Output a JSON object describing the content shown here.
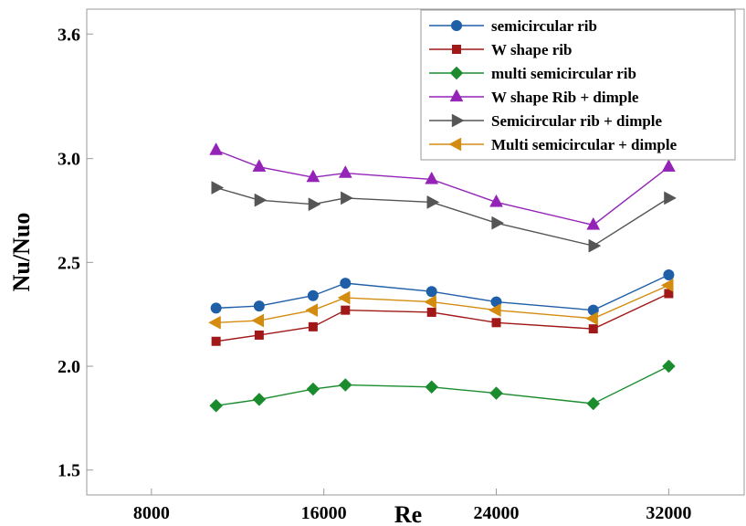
{
  "chart_data": {
    "type": "line",
    "xlabel": "Re",
    "ylabel": "Nu/Nuo",
    "xlim": [
      5000,
      35500
    ],
    "ylim": [
      1.38,
      3.72
    ],
    "xticks": [
      8000,
      16000,
      24000,
      32000
    ],
    "xtick_labels": [
      "8000",
      "16000",
      "24000",
      "32000"
    ],
    "yticks": [
      1.5,
      2.0,
      2.5,
      3.0,
      3.6
    ],
    "ytick_labels": [
      "1.5",
      "2.0",
      "2.5",
      "3.0",
      "3.6"
    ],
    "grid": false,
    "legend_position": "top-right",
    "x": [
      11000,
      13000,
      15500,
      17000,
      21000,
      24000,
      28500,
      32000
    ],
    "series": [
      {
        "name": "semicircular rib",
        "color": "#1f5fa8",
        "marker": "circle",
        "values": [
          2.28,
          2.29,
          2.34,
          2.4,
          2.36,
          2.31,
          2.27,
          2.44
        ]
      },
      {
        "name": "W shape rib",
        "color": "#a01818",
        "marker": "square",
        "values": [
          2.12,
          2.15,
          2.19,
          2.27,
          2.26,
          2.21,
          2.18,
          2.35
        ]
      },
      {
        "name": "multi semicircular rib",
        "color": "#1a8c2e",
        "marker": "diamond",
        "values": [
          1.81,
          1.84,
          1.89,
          1.91,
          1.9,
          1.87,
          1.82,
          2.0
        ]
      },
      {
        "name": "W shape Rib + dimple",
        "color": "#9424b8",
        "marker": "triangle-up",
        "values": [
          3.04,
          2.96,
          2.91,
          2.93,
          2.9,
          2.79,
          2.68,
          2.96
        ]
      },
      {
        "name": "Semicircular  rib + dimple",
        "color": "#555555",
        "marker": "triangle-right",
        "values": [
          2.86,
          2.8,
          2.78,
          2.81,
          2.79,
          2.69,
          2.58,
          2.81
        ]
      },
      {
        "name": "Multi semicircular + dimple",
        "color": "#d48c10",
        "marker": "triangle-left",
        "values": [
          2.21,
          2.22,
          2.27,
          2.33,
          2.31,
          2.27,
          2.23,
          2.39
        ]
      }
    ]
  }
}
